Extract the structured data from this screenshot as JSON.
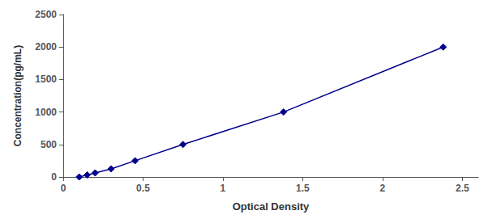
{
  "chart_data": {
    "type": "line",
    "x": [
      0.1,
      0.15,
      0.2,
      0.3,
      0.45,
      0.75,
      1.38,
      2.38
    ],
    "values": [
      0,
      31.25,
      62.5,
      125,
      250,
      500,
      1000,
      2000
    ],
    "color": "#00008B",
    "marker": "diamond",
    "line_style": "solid",
    "xlabel": "Optical Density",
    "ylabel": "Concentration(pg/mL)",
    "xlim": [
      0.0,
      2.6
    ],
    "ylim": [
      0,
      2500
    ],
    "xticks": [
      0,
      0.5,
      1,
      1.5,
      2,
      2.5
    ],
    "yticks": [
      0,
      500,
      1000,
      1500,
      2000,
      2500
    ],
    "grid": false
  }
}
